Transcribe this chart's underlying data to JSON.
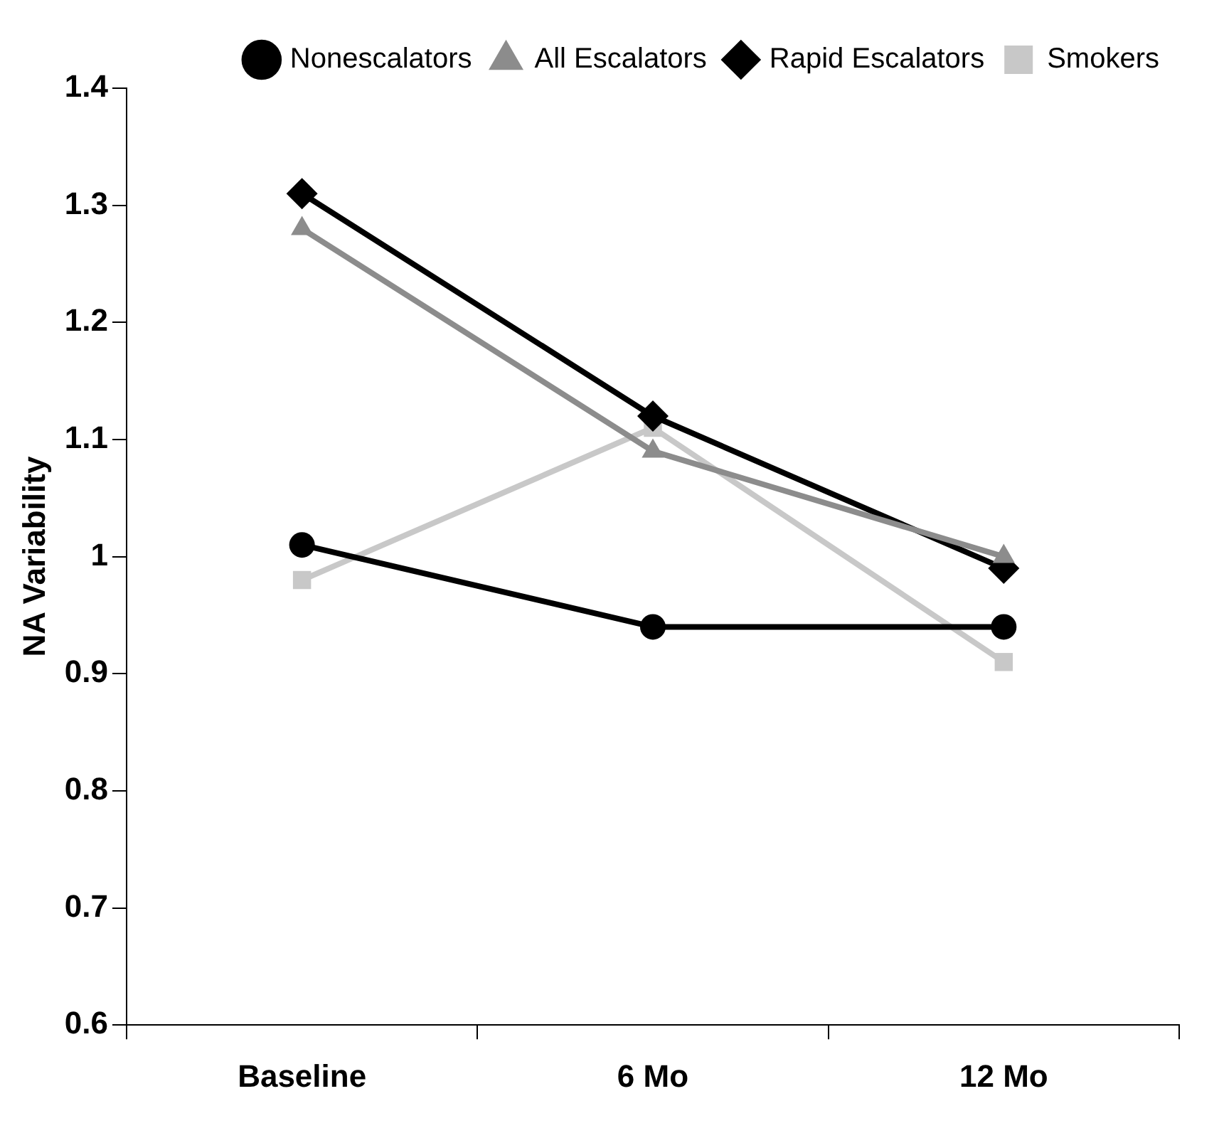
{
  "chart_data": {
    "type": "line",
    "ylabel": "NA Variability",
    "categories": [
      "Baseline",
      "6 Mo",
      "12 Mo"
    ],
    "series": [
      {
        "name": "Nonescalators",
        "color": "#000000",
        "marker": "circle",
        "values": [
          1.01,
          0.94,
          0.94
        ]
      },
      {
        "name": "All Escalators",
        "color": "#8c8c8c",
        "marker": "triangle",
        "values": [
          1.28,
          1.09,
          1.0
        ]
      },
      {
        "name": "Rapid Escalators",
        "color": "#000000",
        "marker": "diamond",
        "values": [
          1.31,
          1.12,
          0.99
        ]
      },
      {
        "name": "Smokers",
        "color": "#c8c8c8",
        "marker": "square",
        "values": [
          0.98,
          1.11,
          0.91
        ]
      }
    ],
    "ylim": [
      0.6,
      1.4
    ],
    "yticks": [
      0.6,
      0.7,
      0.8,
      0.9,
      1,
      1.1,
      1.2,
      1.3,
      1.4
    ],
    "grid": false,
    "legend": "top right",
    "line_style": "solid"
  }
}
